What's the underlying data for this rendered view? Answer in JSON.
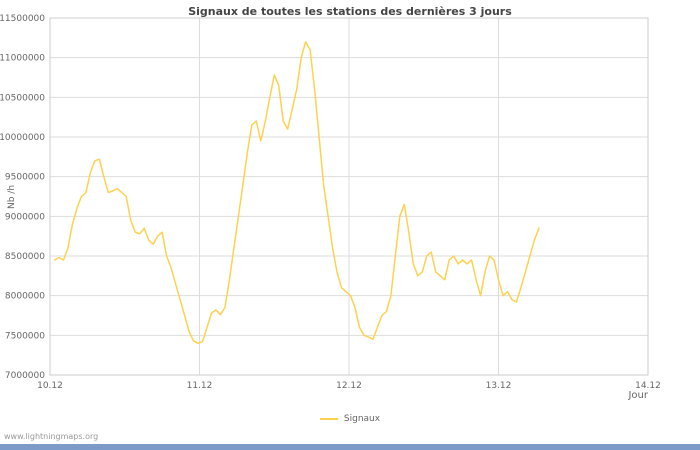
{
  "page": {
    "footer": "www.lightningmaps.org"
  },
  "colors": {
    "line": "#FFD150",
    "grid": "#DDDDDD",
    "border": "#CCCCCC",
    "axis_text": "#666666",
    "title_text": "#444444",
    "footer_text": "#999999",
    "bottom_bar": "#7D9BC8"
  },
  "chart_data": {
    "type": "line",
    "title": "Signaux de toutes les stations des dernières 3 jours",
    "xlabel": "Jour",
    "ylabel": "Nb /h",
    "grid": true,
    "legend_position": "bottom",
    "x_tick_labels": [
      "10.12",
      "11.12",
      "12.12",
      "13.12",
      "14.12"
    ],
    "x_tick_values": [
      0,
      1,
      2,
      3,
      4
    ],
    "y_ticks": [
      7000000,
      7500000,
      8000000,
      8500000,
      9000000,
      9500000,
      10000000,
      10500000,
      11000000,
      11500000
    ],
    "xlim": [
      0,
      4
    ],
    "ylim": [
      7000000,
      11500000
    ],
    "series": [
      {
        "name": "Signaux",
        "color": "#FFD150",
        "x": [
          0.03,
          0.06,
          0.09,
          0.12,
          0.15,
          0.18,
          0.21,
          0.24,
          0.27,
          0.3,
          0.33,
          0.36,
          0.39,
          0.42,
          0.45,
          0.48,
          0.51,
          0.54,
          0.57,
          0.6,
          0.63,
          0.66,
          0.69,
          0.72,
          0.75,
          0.78,
          0.81,
          0.84,
          0.87,
          0.9,
          0.93,
          0.96,
          0.99,
          1.02,
          1.05,
          1.08,
          1.11,
          1.14,
          1.17,
          1.2,
          1.23,
          1.26,
          1.29,
          1.32,
          1.35,
          1.38,
          1.41,
          1.44,
          1.47,
          1.5,
          1.53,
          1.56,
          1.59,
          1.62,
          1.65,
          1.68,
          1.71,
          1.74,
          1.77,
          1.8,
          1.83,
          1.86,
          1.89,
          1.92,
          1.95,
          1.98,
          2.01,
          2.04,
          2.07,
          2.1,
          2.13,
          2.16,
          2.19,
          2.22,
          2.25,
          2.28,
          2.31,
          2.34,
          2.37,
          2.4,
          2.43,
          2.46,
          2.49,
          2.52,
          2.55,
          2.58,
          2.61,
          2.64,
          2.67,
          2.7,
          2.73,
          2.76,
          2.79,
          2.82,
          2.85,
          2.88,
          2.91,
          2.94,
          2.97,
          3.0,
          3.03,
          3.06,
          3.09,
          3.12,
          3.15,
          3.18,
          3.21,
          3.24,
          3.27
        ],
        "y": [
          8450000,
          8480000,
          8450000,
          8600000,
          8900000,
          9100000,
          9250000,
          9300000,
          9550000,
          9700000,
          9720000,
          9500000,
          9300000,
          9320000,
          9350000,
          9300000,
          9250000,
          8950000,
          8800000,
          8780000,
          8850000,
          8700000,
          8650000,
          8750000,
          8800000,
          8500000,
          8350000,
          8150000,
          7950000,
          7750000,
          7550000,
          7430000,
          7400000,
          7420000,
          7600000,
          7780000,
          7820000,
          7760000,
          7850000,
          8200000,
          8600000,
          9000000,
          9400000,
          9800000,
          10150000,
          10200000,
          9950000,
          10200000,
          10500000,
          10780000,
          10650000,
          10200000,
          10100000,
          10350000,
          10600000,
          11000000,
          11200000,
          11100000,
          10600000,
          10000000,
          9400000,
          9000000,
          8600000,
          8300000,
          8100000,
          8050000,
          8000000,
          7850000,
          7600000,
          7500000,
          7480000,
          7450000,
          7600000,
          7750000,
          7800000,
          8000000,
          8500000,
          9000000,
          9150000,
          8800000,
          8400000,
          8250000,
          8300000,
          8500000,
          8550000,
          8300000,
          8250000,
          8200000,
          8450000,
          8500000,
          8400000,
          8450000,
          8400000,
          8450000,
          8200000,
          8000000,
          8300000,
          8500000,
          8450000,
          8200000,
          8000000,
          8050000,
          7950000,
          7920000,
          8100000,
          8300000,
          8500000,
          8700000,
          8850000
        ]
      }
    ]
  }
}
